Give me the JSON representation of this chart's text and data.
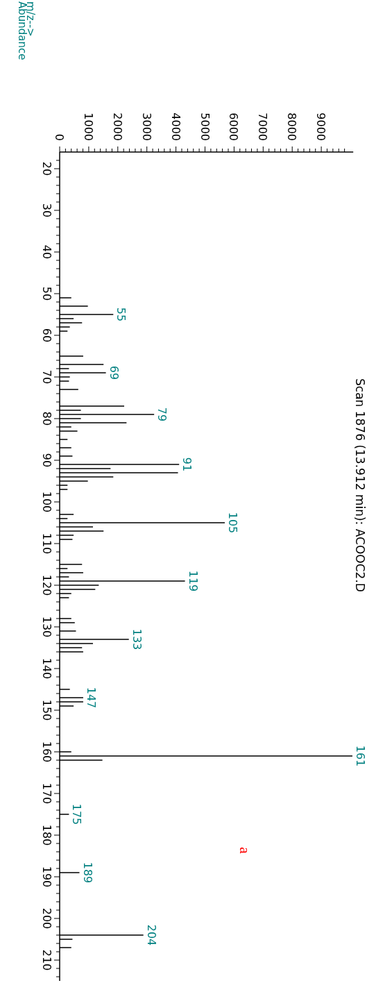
{
  "chart_data": {
    "type": "bar",
    "orientation": "horizontal",
    "title": "Scan 1876 (13.912 min): ACOOC2.D",
    "x": [
      51,
      53,
      55,
      56,
      57,
      58,
      59,
      65,
      67,
      68,
      69,
      70,
      71,
      73,
      77,
      78,
      79,
      80,
      81,
      82,
      83,
      85,
      87,
      89,
      91,
      92,
      93,
      94,
      95,
      96,
      97,
      103,
      104,
      105,
      106,
      107,
      108,
      109,
      115,
      116,
      117,
      118,
      119,
      120,
      121,
      122,
      123,
      128,
      129,
      131,
      133,
      134,
      135,
      136,
      145,
      147,
      148,
      149,
      160,
      161,
      162,
      175,
      189,
      204,
      205,
      207
    ],
    "values": [
      400,
      970,
      1845,
      480,
      770,
      350,
      270,
      810,
      1510,
      320,
      1590,
      350,
      320,
      640,
      2220,
      730,
      3250,
      730,
      2300,
      400,
      610,
      270,
      400,
      440,
      4110,
      1750,
      4070,
      1845,
      970,
      270,
      270,
      480,
      270,
      5680,
      1145,
      1510,
      480,
      440,
      770,
      270,
      810,
      320,
      4310,
      1345,
      1225,
      400,
      320,
      400,
      520,
      560,
      2380,
      1145,
      770,
      810,
      350,
      810,
      810,
      480,
      400,
      10070,
      1470,
      320,
      680,
      2880,
      440,
      400
    ],
    "color": "#000000",
    "ylim": [
      215,
      16
    ],
    "yticks": [
      20,
      30,
      40,
      50,
      60,
      70,
      80,
      90,
      100,
      110,
      120,
      130,
      140,
      150,
      160,
      170,
      180,
      190,
      200,
      210,
      {
        "value": 18,
        "label": null
      },
      {
        "value": 22,
        "label": null
      },
      {
        "value": 24,
        "label": null
      },
      {
        "value": 26,
        "label": null
      },
      {
        "value": 28,
        "label": null
      },
      {
        "value": 32,
        "label": null
      },
      {
        "value": 34,
        "label": null
      },
      {
        "value": 36,
        "label": null
      },
      {
        "value": 38,
        "label": null
      },
      {
        "value": 42,
        "label": null
      },
      {
        "value": 44,
        "label": null
      },
      {
        "value": 46,
        "label": null
      },
      {
        "value": 48,
        "label": null
      },
      {
        "value": 52,
        "label": null
      },
      {
        "value": 54,
        "label": null
      },
      {
        "value": 56,
        "label": null
      },
      {
        "value": 58,
        "label": null
      },
      {
        "value": 62,
        "label": null
      },
      {
        "value": 64,
        "label": null
      },
      {
        "value": 66,
        "label": null
      },
      {
        "value": 68,
        "label": null
      },
      {
        "value": 72,
        "label": null
      },
      {
        "value": 74,
        "label": null
      },
      {
        "value": 76,
        "label": null
      },
      {
        "value": 78,
        "label": null
      },
      {
        "value": 82,
        "label": null
      },
      {
        "value": 84,
        "label": null
      },
      {
        "value": 86,
        "label": null
      },
      {
        "value": 88,
        "label": null
      },
      {
        "value": 92,
        "label": null
      },
      {
        "value": 94,
        "label": null
      },
      {
        "value": 96,
        "label": null
      },
      {
        "value": 98,
        "label": null
      },
      {
        "value": 102,
        "label": null
      },
      {
        "value": 104,
        "label": null
      },
      {
        "value": 106,
        "label": null
      },
      {
        "value": 108,
        "label": null
      },
      {
        "value": 112,
        "label": null
      },
      {
        "value": 114,
        "label": null
      },
      {
        "value": 116,
        "label": null
      },
      {
        "value": 118,
        "label": null
      },
      {
        "value": 122,
        "label": null
      },
      {
        "value": 124,
        "label": null
      },
      {
        "value": 126,
        "label": null
      },
      {
        "value": 128,
        "label": null
      },
      {
        "value": 132,
        "label": null
      },
      {
        "value": 134,
        "label": null
      },
      {
        "value": 136,
        "label": null
      },
      {
        "value": 138,
        "label": null
      },
      {
        "value": 142,
        "label": null
      },
      {
        "value": 144,
        "label": null
      },
      {
        "value": 146,
        "label": null
      },
      {
        "value": 148,
        "label": null
      },
      {
        "value": 152,
        "label": null
      },
      {
        "value": 154,
        "label": null
      },
      {
        "value": 156,
        "label": null
      },
      {
        "value": 158,
        "label": null
      },
      {
        "value": 162,
        "label": null
      },
      {
        "value": 164,
        "label": null
      },
      {
        "value": 166,
        "label": null
      },
      {
        "value": 168,
        "label": null
      },
      {
        "value": 172,
        "label": null
      },
      {
        "value": 174,
        "label": null
      },
      {
        "value": 176,
        "label": null
      },
      {
        "value": 178,
        "label": null
      },
      {
        "value": 182,
        "label": null
      },
      {
        "value": 184,
        "label": null
      },
      {
        "value": 186,
        "label": null
      },
      {
        "value": 188,
        "label": null
      },
      {
        "value": 192,
        "label": null
      },
      {
        "value": 194,
        "label": null
      },
      {
        "value": 196,
        "label": null
      },
      {
        "value": 198,
        "label": null
      },
      {
        "value": 202,
        "label": null
      },
      {
        "value": 204,
        "label": null
      },
      {
        "value": 206,
        "label": null
      },
      {
        "value": 208,
        "label": null
      },
      {
        "value": 212,
        "label": null
      },
      {
        "value": 214,
        "label": null
      }
    ],
    "xlim": [
      0,
      10100
    ],
    "xticks": [
      0,
      1000,
      2000,
      3000,
      4000,
      5000,
      6000,
      7000,
      8000,
      9000,
      {
        "value": 200,
        "label": null
      },
      {
        "value": 400,
        "label": null
      },
      {
        "value": 600,
        "label": null
      },
      {
        "value": 800,
        "label": null
      },
      {
        "value": 1200,
        "label": null
      },
      {
        "value": 1400,
        "label": null
      },
      {
        "value": 1600,
        "label": null
      },
      {
        "value": 1800,
        "label": null
      },
      {
        "value": 2200,
        "label": null
      },
      {
        "value": 2400,
        "label": null
      },
      {
        "value": 2600,
        "label": null
      },
      {
        "value": 2800,
        "label": null
      },
      {
        "value": 3200,
        "label": null
      },
      {
        "value": 3400,
        "label": null
      },
      {
        "value": 3600,
        "label": null
      },
      {
        "value": 3800,
        "label": null
      },
      {
        "value": 4200,
        "label": null
      },
      {
        "value": 4400,
        "label": null
      },
      {
        "value": 4600,
        "label": null
      },
      {
        "value": 4800,
        "label": null
      },
      {
        "value": 5200,
        "label": null
      },
      {
        "value": 5400,
        "label": null
      },
      {
        "value": 5600,
        "label": null
      },
      {
        "value": 5800,
        "label": null
      },
      {
        "value": 6200,
        "label": null
      },
      {
        "value": 6400,
        "label": null
      },
      {
        "value": 6600,
        "label": null
      },
      {
        "value": 6800,
        "label": null
      },
      {
        "value": 7200,
        "label": null
      },
      {
        "value": 7400,
        "label": null
      },
      {
        "value": 7600,
        "label": null
      },
      {
        "value": 7800,
        "label": null
      },
      {
        "value": 8200,
        "label": null
      },
      {
        "value": 8400,
        "label": null
      },
      {
        "value": 8600,
        "label": null
      },
      {
        "value": 8800,
        "label": null
      },
      {
        "value": 9200,
        "label": null
      },
      {
        "value": 9400,
        "label": null
      },
      {
        "value": 9600,
        "label": null
      },
      {
        "value": 9800,
        "label": null
      }
    ],
    "grid": false,
    "annotations": [
      {
        "text": "55",
        "x": 1845,
        "y": 55
      },
      {
        "text": "69",
        "x": 1590,
        "y": 69
      },
      {
        "text": "79",
        "x": 3250,
        "y": 79
      },
      {
        "text": "91",
        "x": 4110,
        "y": 91
      },
      {
        "text": "105",
        "x": 5680,
        "y": 105
      },
      {
        "text": "119",
        "x": 4310,
        "y": 119
      },
      {
        "text": "133",
        "x": 2380,
        "y": 133
      },
      {
        "text": "147",
        "x": 810,
        "y": 147
      },
      {
        "text": "161",
        "x": 10070,
        "y": 161
      },
      {
        "text": "175",
        "x": 320,
        "y": 175
      },
      {
        "text": "189",
        "x": 680,
        "y": 189
      },
      {
        "text": "204",
        "x": 2880,
        "y": 204
      },
      "m/z-->",
      "Abundance",
      "a"
    ]
  }
}
